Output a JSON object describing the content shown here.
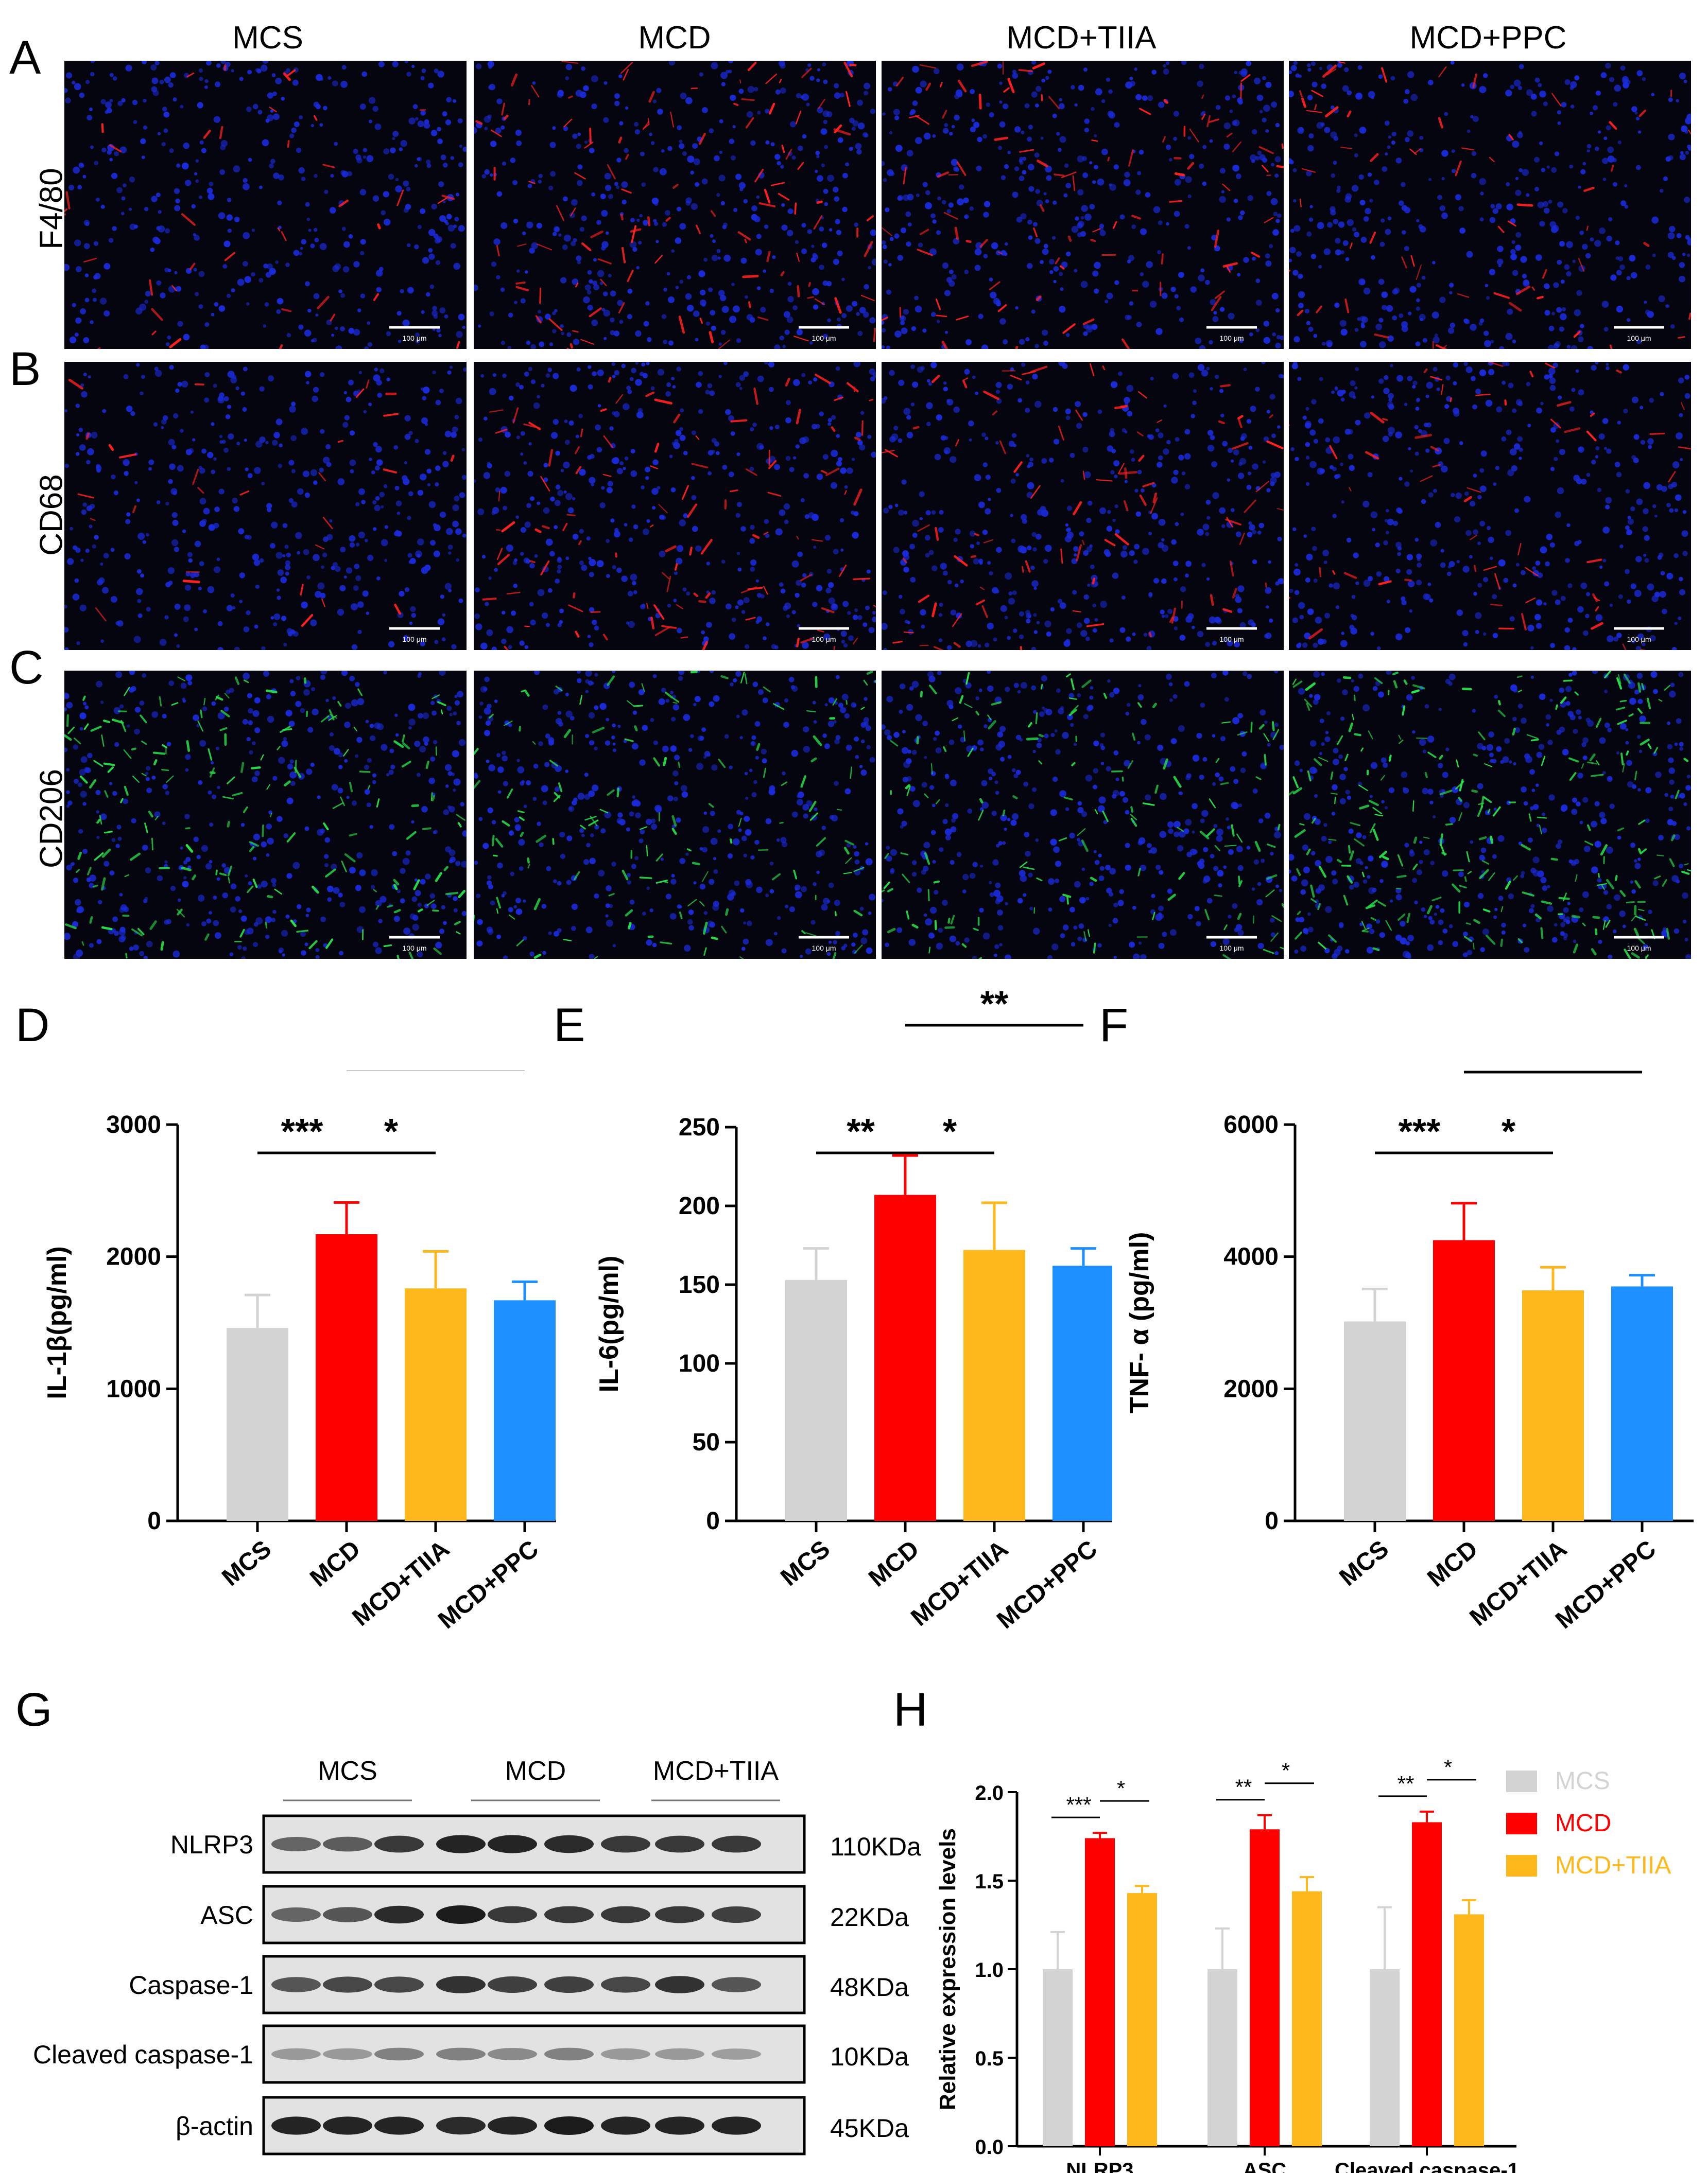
{
  "panel_letters": [
    "A",
    "B",
    "C",
    "D",
    "E",
    "F",
    "G",
    "H"
  ],
  "micrographs": {
    "columns": [
      "MCS",
      "MCD",
      "MCD+TIIA",
      "MCD+PPC"
    ],
    "rows": [
      {
        "label": "F4/80",
        "stain": "red"
      },
      {
        "label": "CD68",
        "stain": "red"
      },
      {
        "label": "CD206",
        "stain": "green"
      }
    ],
    "scale_bar": "100 μm",
    "colors": {
      "background": "#05050f",
      "nuclei": "#1a2ad8",
      "red_stain": "#ff2020",
      "green_stain": "#28e04a"
    }
  },
  "western_blot": {
    "groups": [
      "MCS",
      "MCD",
      "MCD+TIIA"
    ],
    "rows": [
      {
        "protein": "NLRP3",
        "size": "110KDa"
      },
      {
        "protein": "ASC",
        "size": "22KDa"
      },
      {
        "protein": "Caspase-1",
        "size": "48KDa"
      },
      {
        "protein": "Cleaved caspase-1",
        "size": "10KDa"
      },
      {
        "protein": "β-actin",
        "size": "45KDa"
      }
    ]
  },
  "chart_data": [
    {
      "panel": "D",
      "type": "bar",
      "categories": [
        "MCS",
        "MCD",
        "MCD+TIIA",
        "MCD+PPC"
      ],
      "values": [
        1460,
        2170,
        1760,
        1670
      ],
      "errors": [
        250,
        240,
        280,
        140
      ],
      "ylabel": "IL-1β(pg/ml)",
      "ylim": [
        0,
        3000
      ],
      "yticks": [
        0,
        1000,
        2000,
        3000
      ],
      "colors": [
        "#d3d3d3",
        "#ff0000",
        "#ffb81c",
        "#1e8fff"
      ],
      "significance": [
        {
          "from": 0,
          "to": 1,
          "label": "***",
          "level": 1
        },
        {
          "from": 1,
          "to": 2,
          "label": "*",
          "level": 1
        },
        {
          "from": 1,
          "to": 3,
          "label": "**",
          "level": 2
        }
      ]
    },
    {
      "panel": "E",
      "type": "bar",
      "categories": [
        "MCS",
        "MCD",
        "MCD+TIIA",
        "MCD+PPC"
      ],
      "values": [
        153,
        207,
        172,
        162
      ],
      "errors": [
        20,
        25,
        30,
        11
      ],
      "ylabel": "IL-6(pg/ml)",
      "ylim": [
        0,
        250
      ],
      "yticks": [
        0,
        50,
        100,
        150,
        200,
        250
      ],
      "colors": [
        "#d3d3d3",
        "#ff0000",
        "#ffb81c",
        "#1e8fff"
      ],
      "significance": [
        {
          "from": 0,
          "to": 1,
          "label": "**",
          "level": 1
        },
        {
          "from": 1,
          "to": 2,
          "label": "*",
          "level": 1
        },
        {
          "from": 1,
          "to": 3,
          "label": "**",
          "level": 2
        }
      ]
    },
    {
      "panel": "F",
      "type": "bar",
      "categories": [
        "MCS",
        "MCD",
        "MCD+TIIA",
        "MCD+PPC"
      ],
      "values": [
        3020,
        4250,
        3490,
        3550
      ],
      "errors": [
        490,
        560,
        350,
        170
      ],
      "ylabel": "TNF- α (pg/ml)",
      "ylim": [
        0,
        6000
      ],
      "yticks": [
        0,
        2000,
        4000,
        6000
      ],
      "colors": [
        "#d3d3d3",
        "#ff0000",
        "#ffb81c",
        "#1e8fff"
      ],
      "significance": [
        {
          "from": 0,
          "to": 1,
          "label": "***",
          "level": 1
        },
        {
          "from": 1,
          "to": 2,
          "label": "*",
          "level": 1
        },
        {
          "from": 1,
          "to": 3,
          "label": "*",
          "level": 2
        }
      ]
    },
    {
      "panel": "H",
      "type": "bar",
      "categories": [
        "NLRP3",
        "ASC",
        "Cleaved caspase-1"
      ],
      "series": [
        {
          "name": "MCS",
          "values": [
            1.0,
            1.0,
            1.0
          ],
          "errors": [
            0.21,
            0.23,
            0.35
          ],
          "color": "#d3d3d3"
        },
        {
          "name": "MCD",
          "values": [
            1.74,
            1.79,
            1.83
          ],
          "errors": [
            0.03,
            0.08,
            0.06
          ],
          "color": "#ff0000"
        },
        {
          "name": "MCD+TIIA",
          "values": [
            1.43,
            1.44,
            1.31
          ],
          "errors": [
            0.04,
            0.08,
            0.08
          ],
          "color": "#ffb81c"
        }
      ],
      "ylabel": "Relative expression levels",
      "ylim": [
        0,
        2.0
      ],
      "yticks": [
        "0.0",
        "0.5",
        "1.0",
        "1.5",
        "2.0"
      ],
      "legend": "right",
      "significance": [
        {
          "group": 0,
          "from": 0,
          "to": 1,
          "label": "***"
        },
        {
          "group": 0,
          "from": 1,
          "to": 2,
          "label": "*"
        },
        {
          "group": 1,
          "from": 0,
          "to": 1,
          "label": "**"
        },
        {
          "group": 1,
          "from": 1,
          "to": 2,
          "label": "*"
        },
        {
          "group": 2,
          "from": 0,
          "to": 1,
          "label": "**"
        },
        {
          "group": 2,
          "from": 1,
          "to": 2,
          "label": "*"
        }
      ]
    }
  ]
}
